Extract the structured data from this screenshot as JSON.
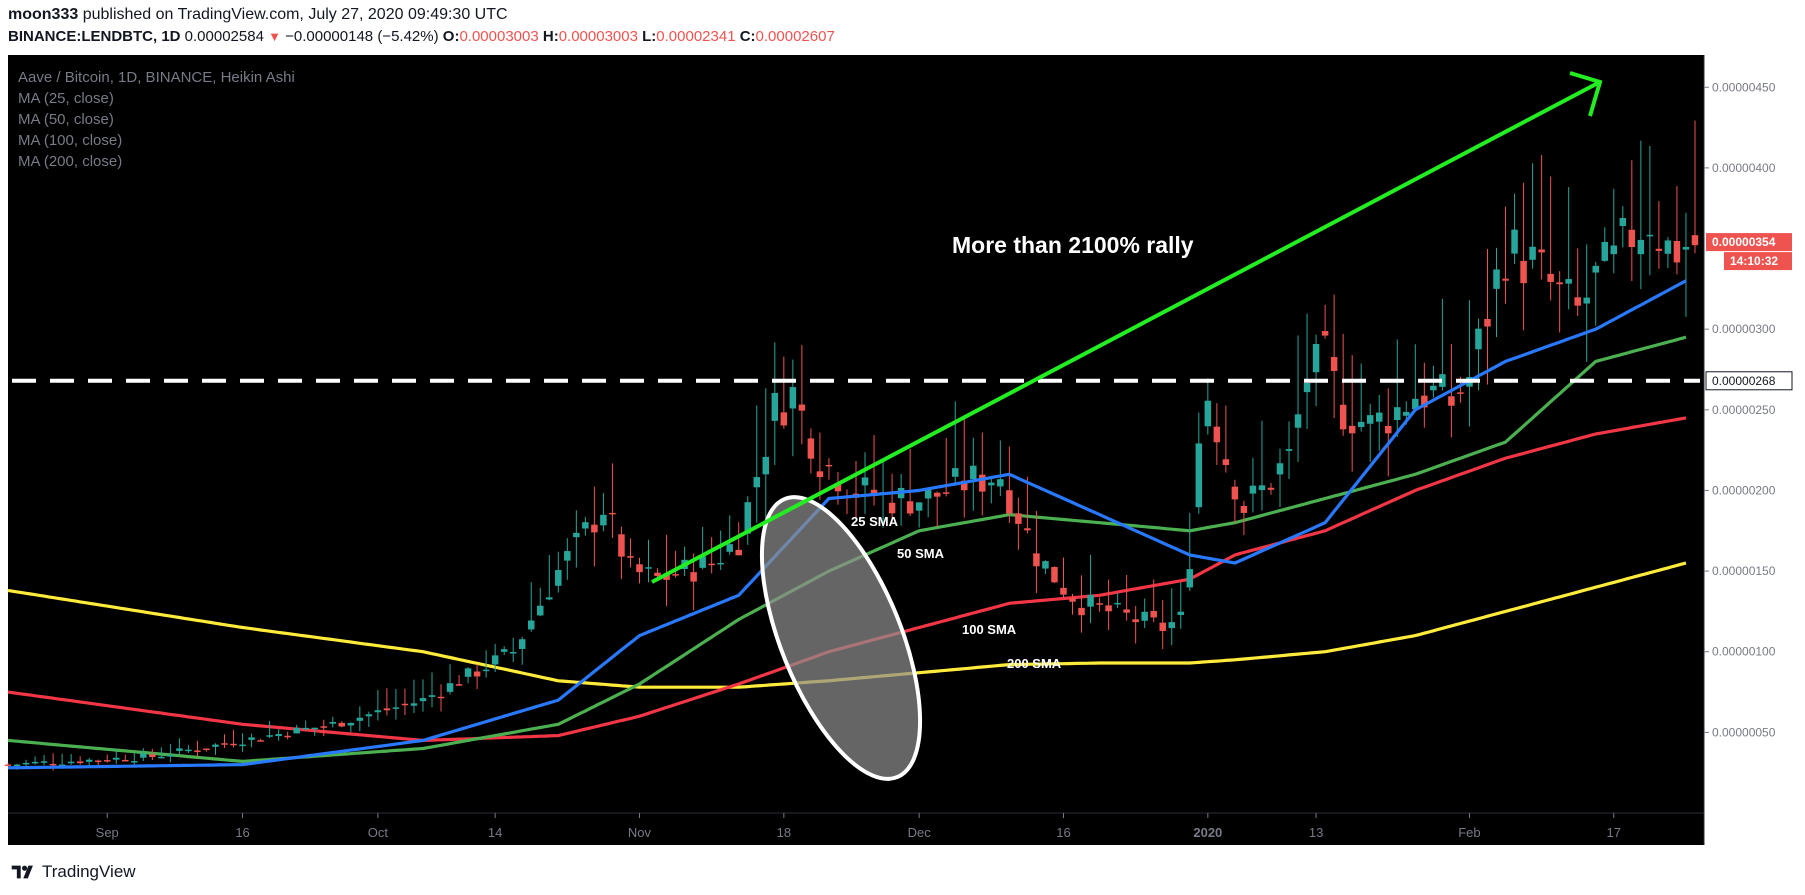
{
  "header": {
    "user": "moon333",
    "published": " published on TradingView.com, July 27, 2020 09:49:30 UTC",
    "symbol": "BINANCE:LENDBTC, 1D",
    "price": "0.00002584",
    "change": "−0.00000148 (−5.42%)",
    "o_label": "O:",
    "o_val": "0.00003003",
    "h_label": "H:",
    "h_val": "0.00003003",
    "l_label": "L:",
    "l_val": "0.00002341",
    "c_label": "C:",
    "c_val": "0.00002607"
  },
  "legend": {
    "title": "Aave / Bitcoin, 1D, BINANCE, Heikin Ashi",
    "ma25": "MA (25, close)",
    "ma50": "MA (50, close)",
    "ma100": "MA (100, close)",
    "ma200": "MA (200, close)"
  },
  "annotations": {
    "rally": "More than 2100% rally",
    "sma25": "25 SMA",
    "sma50": "50 SMA",
    "sma100": "100 SMA",
    "sma200": "200 SMA"
  },
  "price_tags": {
    "last": "0.00000354",
    "countdown": "14:10:32",
    "level": "0.00000268"
  },
  "footer": {
    "brand": "TradingView"
  },
  "colors": {
    "bg": "#000000",
    "up": "#26a69a",
    "down": "#ef5350",
    "ma25": "#2979ff",
    "ma50": "#4caf50",
    "ma100": "#f23645",
    "ma200": "#ffeb3b",
    "arrow": "#22ee22"
  },
  "chart_data": {
    "type": "candlestick",
    "y_ticks": [
      "0.00000450",
      "0.00000400",
      "0.00000300",
      "0.00000250",
      "0.00000200",
      "0.00000150",
      "0.00000100",
      "0.00000050"
    ],
    "y_tick_values": [
      4.5,
      4.0,
      3.0,
      2.5,
      2.0,
      1.5,
      1.0,
      0.5
    ],
    "y_unit": "1e-6 BTC",
    "ylim": [
      0.0,
      4.7
    ],
    "x_ticks": [
      "Sep",
      "16",
      "Oct",
      "14",
      "Nov",
      "18",
      "Dec",
      "16",
      "2020",
      "13",
      "Feb",
      "17"
    ],
    "x_tick_days": [
      5,
      20,
      35,
      48,
      64,
      80,
      95,
      111,
      127,
      139,
      156,
      172
    ],
    "x_range_days": [
      -6,
      182
    ],
    "horizontal_level": 2.68,
    "last_price": 3.54,
    "close_anchor_days": [
      -6,
      10,
      20,
      30,
      40,
      50,
      55,
      60,
      63,
      66,
      69,
      72,
      75,
      77,
      79,
      81,
      84,
      88,
      92,
      96,
      100,
      104,
      108,
      111,
      113,
      116,
      119,
      122,
      124,
      125,
      126,
      127,
      129,
      131,
      133,
      136,
      138,
      140,
      142,
      145,
      148,
      150,
      152,
      154,
      156,
      158,
      160,
      163,
      166,
      168,
      170,
      172,
      174,
      176,
      178,
      182
    ],
    "close_anchor_values": [
      0.3,
      0.35,
      0.45,
      0.55,
      0.7,
      1.0,
      1.5,
      1.9,
      1.5,
      1.45,
      1.5,
      1.55,
      1.7,
      2.1,
      2.5,
      2.6,
      2.2,
      2.0,
      1.95,
      1.95,
      2.05,
      2.1,
      1.6,
      1.4,
      1.3,
      1.25,
      1.2,
      1.15,
      1.2,
      1.6,
      2.3,
      2.6,
      2.2,
      1.9,
      2.0,
      2.2,
      2.7,
      2.8,
      2.5,
      2.4,
      2.5,
      2.6,
      2.6,
      2.55,
      2.7,
      3.1,
      3.5,
      3.4,
      3.2,
      3.1,
      3.3,
      3.4,
      3.6,
      3.7,
      3.5,
      3.54
    ],
    "ma25_days": [
      -6,
      20,
      40,
      55,
      64,
      75,
      85,
      95,
      105,
      115,
      125,
      130,
      140,
      150,
      160,
      170,
      180
    ],
    "ma25_values": [
      0.28,
      0.3,
      0.45,
      0.7,
      1.1,
      1.35,
      1.95,
      2.0,
      2.1,
      1.85,
      1.6,
      1.55,
      1.8,
      2.5,
      2.8,
      3.0,
      3.3
    ],
    "ma50_days": [
      -6,
      20,
      40,
      55,
      64,
      75,
      85,
      95,
      105,
      115,
      125,
      130,
      140,
      150,
      160,
      170,
      180
    ],
    "ma50_values": [
      0.45,
      0.32,
      0.4,
      0.55,
      0.8,
      1.2,
      1.5,
      1.75,
      1.85,
      1.8,
      1.75,
      1.8,
      1.95,
      2.1,
      2.3,
      2.8,
      2.95
    ],
    "ma100_days": [
      -6,
      20,
      40,
      55,
      64,
      75,
      85,
      95,
      105,
      115,
      125,
      130,
      140,
      150,
      160,
      170,
      180
    ],
    "ma100_values": [
      0.75,
      0.55,
      0.45,
      0.48,
      0.6,
      0.8,
      1.0,
      1.15,
      1.3,
      1.35,
      1.45,
      1.6,
      1.75,
      2.0,
      2.2,
      2.35,
      2.45
    ],
    "ma200_days": [
      -6,
      20,
      40,
      55,
      64,
      75,
      85,
      95,
      105,
      115,
      125,
      130,
      140,
      150,
      160,
      170,
      180
    ],
    "ma200_values": [
      1.38,
      1.15,
      1.0,
      0.82,
      0.78,
      0.78,
      0.82,
      0.87,
      0.92,
      0.93,
      0.93,
      0.95,
      1.0,
      1.1,
      1.25,
      1.4,
      1.55
    ]
  }
}
